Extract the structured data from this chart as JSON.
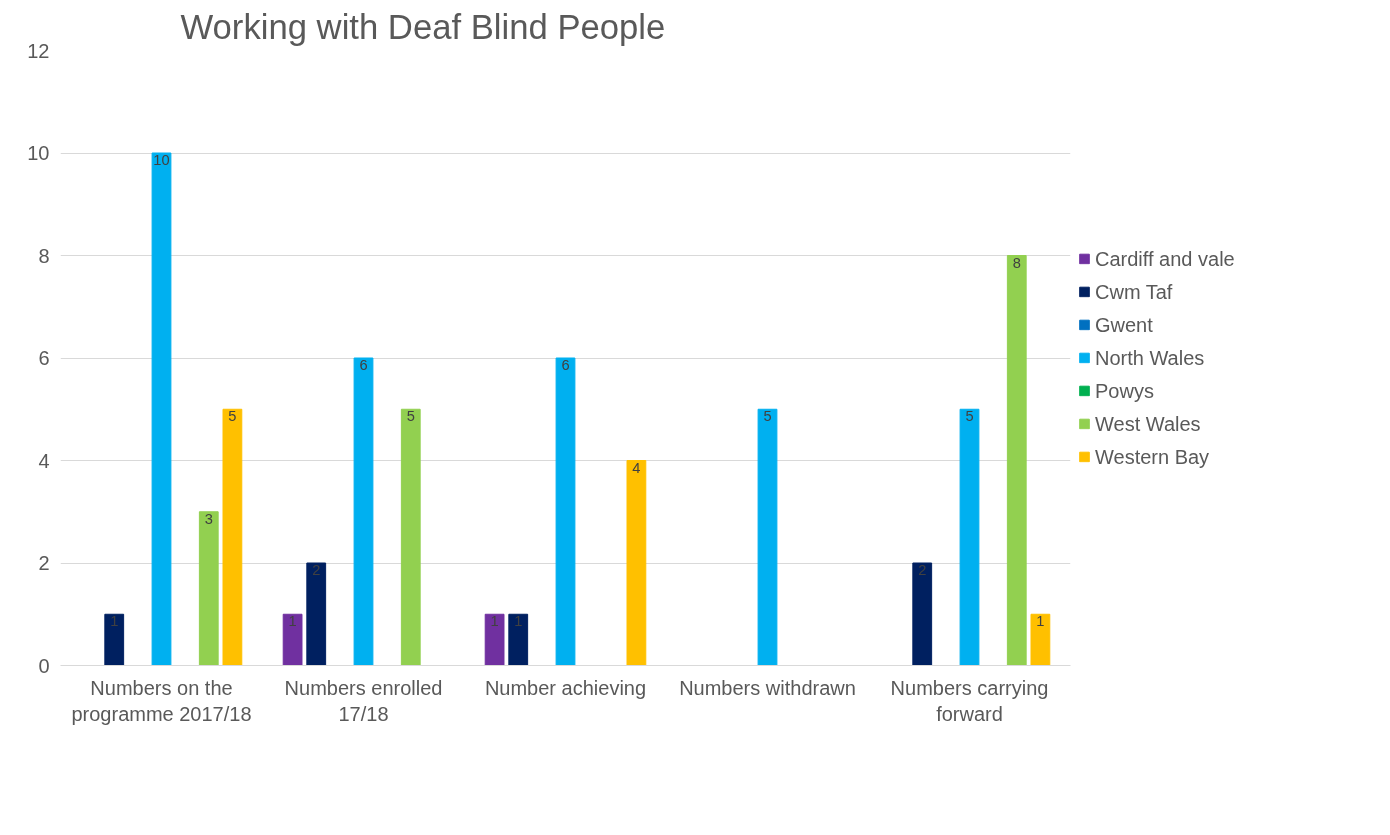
{
  "chart_data": {
    "type": "bar",
    "title": "Working with Deaf Blind People",
    "categories": [
      "Numbers on the programme 2017/18",
      "Numbers enrolled 17/18",
      "Number achieving",
      "Numbers withdrawn",
      "Numbers carrying forward"
    ],
    "series": [
      {
        "name": "Cardiff and vale",
        "color": "#7030a0",
        "values": [
          0,
          1,
          1,
          0,
          0
        ],
        "value_labels": [
          null,
          "1",
          "1",
          null,
          null
        ]
      },
      {
        "name": "Cwm Taf",
        "color": "#002060",
        "values": [
          1,
          2,
          1,
          0,
          2
        ],
        "value_labels": [
          "1",
          "2",
          "1",
          null,
          "2"
        ]
      },
      {
        "name": "Gwent",
        "color": "#0070c0",
        "values": [
          0,
          0,
          0,
          0,
          0
        ],
        "value_labels": [
          null,
          null,
          null,
          null,
          null
        ]
      },
      {
        "name": "North Wales",
        "color": "#00b0f0",
        "values": [
          10,
          6,
          6,
          5,
          5
        ],
        "value_labels": [
          "10",
          "6",
          "6",
          "5",
          "5"
        ]
      },
      {
        "name": "Powys",
        "color": "#00b050",
        "values": [
          0,
          0,
          0,
          0,
          0
        ],
        "value_labels": [
          null,
          null,
          null,
          null,
          null
        ]
      },
      {
        "name": "West Wales",
        "color": "#92d050",
        "values": [
          3,
          5,
          0,
          0,
          8
        ],
        "value_labels": [
          "3",
          "5",
          null,
          null,
          "8"
        ]
      },
      {
        "name": "Western Bay",
        "color": "#ffc000",
        "values": [
          5,
          0,
          4,
          0,
          1
        ],
        "value_labels": [
          "5",
          null,
          "4",
          null,
          "1"
        ]
      }
    ],
    "ylim": [
      0,
      12
    ],
    "yticks": [
      0,
      2,
      4,
      6,
      8,
      10,
      12
    ],
    "grid": "y",
    "legend": "right"
  }
}
